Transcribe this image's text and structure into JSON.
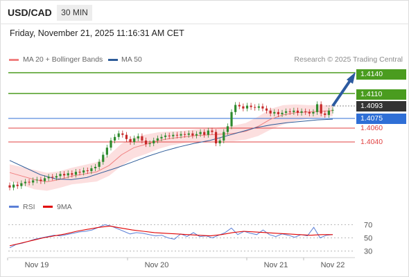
{
  "header": {
    "symbol": "USD/CAD",
    "timeframe": "30 MIN",
    "datetime": "Friday, November 21, 2025 11:16:31 AM CET"
  },
  "legend": {
    "ma20": {
      "label": "MA 20 + Bollinger Bands",
      "color": "#f08080"
    },
    "ma50": {
      "label": "MA 50",
      "color": "#2e5c99"
    },
    "credit": "Research © 2025 Trading Central"
  },
  "rsi_legend": {
    "rsi": {
      "label": "RSI",
      "color": "#5b7fd6"
    },
    "ma9": {
      "label": "9MA",
      "color": "#e00000"
    }
  },
  "levels": [
    {
      "value": "1.4140",
      "kind": "resistance",
      "color": "#4a9c1f"
    },
    {
      "value": "1.4110",
      "kind": "resistance",
      "color": "#4a9c1f"
    },
    {
      "value": "1.4093",
      "kind": "last",
      "color": "#333333"
    },
    {
      "value": "1.4075",
      "kind": "pivot",
      "color": "#2f6fd6"
    },
    {
      "value": "1.4060",
      "kind": "support",
      "color": "#e04040"
    },
    {
      "value": "1.4040",
      "kind": "support",
      "color": "#e04040"
    }
  ],
  "chart_data": [
    {
      "type": "candlestick",
      "title": "USD/CAD 30 MIN",
      "x_ticks": [
        "Nov 19",
        "Nov 20",
        "Nov 21",
        "Nov 22"
      ],
      "y_range": [
        1.3975,
        1.4155
      ],
      "series": [
        {
          "name": "Price (close, approx.)",
          "values": [
            1.3984,
            1.3988,
            1.3986,
            1.399,
            1.3992,
            1.3991,
            1.3994,
            1.3995,
            1.3993,
            1.3997,
            1.3999,
            1.3998,
            1.4,
            1.4003,
            1.4001,
            1.4004,
            1.4002,
            1.4006,
            1.4005,
            1.4008,
            1.4007,
            1.4011,
            1.4013,
            1.402,
            1.403,
            1.404,
            1.405,
            1.4055,
            1.406,
            1.4058,
            1.4052,
            1.4048,
            1.4053,
            1.4056,
            1.405,
            1.4045,
            1.4046,
            1.405,
            1.4053,
            1.4055,
            1.4057,
            1.4056,
            1.4058,
            1.4057,
            1.4059,
            1.4058,
            1.406,
            1.4057,
            1.4059,
            1.4062,
            1.4058,
            1.4064,
            1.4062,
            1.4046,
            1.405,
            1.4062,
            1.407,
            1.409,
            1.41,
            1.4098,
            1.4095,
            1.4099,
            1.4097,
            1.4096,
            1.4098,
            1.4095,
            1.4092,
            1.4088,
            1.409,
            1.4087,
            1.4089,
            1.4091,
            1.409,
            1.4092,
            1.4089,
            1.4091,
            1.409,
            1.4088,
            1.409,
            1.4101,
            1.4088,
            1.4086,
            1.4092,
            1.4093
          ]
        },
        {
          "name": "MA 20",
          "values": [
            1.4005,
            1.4,
            1.3995,
            1.3992,
            1.3995,
            1.4,
            1.4003,
            1.4006,
            1.4015,
            1.403,
            1.404,
            1.4045,
            1.405,
            1.4053,
            1.4055,
            1.4057,
            1.4058,
            1.4059,
            1.406,
            1.4063,
            1.407,
            1.408,
            1.4086,
            1.4089,
            1.409,
            1.4091,
            1.4092
          ]
        },
        {
          "name": "MA 50",
          "values": [
            1.4022,
            1.4012,
            1.4002,
            1.3996,
            1.3995,
            1.3998,
            1.4005,
            1.4012,
            1.402,
            1.4028,
            1.4035,
            1.4041,
            1.4046,
            1.405,
            1.4056,
            1.4062,
            1.4068,
            1.4072,
            1.4075,
            1.4077,
            1.4079,
            1.408
          ]
        }
      ]
    },
    {
      "type": "line",
      "title": "RSI",
      "y_ticks": [
        "70",
        "50",
        "30"
      ],
      "y_range": [
        20,
        80
      ],
      "series": [
        {
          "name": "RSI",
          "values": [
            35,
            40,
            42,
            45,
            48,
            50,
            52,
            54,
            53,
            55,
            57,
            59,
            60,
            62,
            66,
            70,
            68,
            64,
            60,
            56,
            58,
            57,
            55,
            53,
            54,
            50,
            48,
            56,
            52,
            58,
            52,
            53,
            50,
            54,
            58,
            65,
            55,
            60,
            57,
            55,
            62,
            55,
            52,
            56,
            54,
            51,
            55,
            53,
            66,
            50,
            54,
            55
          ]
        },
        {
          "name": "9MA",
          "values": [
            38,
            42,
            46,
            50,
            53,
            56,
            60,
            63,
            66,
            68,
            65,
            62,
            60,
            58,
            57,
            56,
            55,
            54,
            53,
            55,
            58,
            60,
            59,
            58,
            57,
            56,
            55,
            54,
            55,
            55
          ]
        }
      ]
    }
  ]
}
